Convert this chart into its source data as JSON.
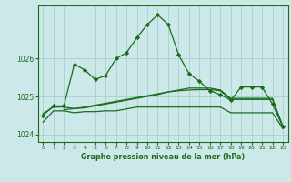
{
  "title": "Graphe pression niveau de la mer (hPa)",
  "background_color": "#cce8e8",
  "grid_color": "#aad4d4",
  "line_color": "#1a6b1a",
  "xlim": [
    -0.5,
    23.5
  ],
  "ylim": [
    1023.8,
    1027.4
  ],
  "yticks": [
    1024,
    1025,
    1026
  ],
  "xticks": [
    0,
    1,
    2,
    3,
    4,
    5,
    6,
    7,
    8,
    9,
    10,
    11,
    12,
    13,
    14,
    15,
    16,
    17,
    18,
    19,
    20,
    21,
    22,
    23
  ],
  "series1": {
    "x": [
      0,
      1,
      2,
      3,
      4,
      5,
      6,
      7,
      8,
      9,
      10,
      11,
      12,
      13,
      14,
      15,
      16,
      17,
      18,
      19,
      20,
      21,
      22,
      23
    ],
    "y": [
      1024.5,
      1024.75,
      1024.75,
      1025.85,
      1025.7,
      1025.45,
      1025.55,
      1026.0,
      1026.15,
      1026.55,
      1026.9,
      1027.15,
      1026.9,
      1026.1,
      1025.6,
      1025.4,
      1025.15,
      1025.05,
      1024.9,
      1025.25,
      1025.25,
      1025.25,
      1024.8,
      1024.2
    ]
  },
  "series2": {
    "x": [
      0,
      1,
      2,
      3,
      4,
      5,
      6,
      7,
      8,
      9,
      10,
      11,
      12,
      13,
      14,
      15,
      16,
      17,
      18,
      19,
      20,
      21,
      22,
      23
    ],
    "y": [
      1024.55,
      1024.72,
      1024.72,
      1024.68,
      1024.72,
      1024.77,
      1024.82,
      1024.87,
      1024.92,
      1024.97,
      1025.02,
      1025.07,
      1025.12,
      1025.15,
      1025.17,
      1025.18,
      1025.18,
      1025.15,
      1024.92,
      1024.92,
      1024.92,
      1024.92,
      1024.92,
      1024.2
    ]
  },
  "series3": {
    "x": [
      0,
      1,
      2,
      3,
      4,
      5,
      6,
      7,
      8,
      9,
      10,
      11,
      12,
      13,
      14,
      15,
      16,
      17,
      18,
      19,
      20,
      21,
      22,
      23
    ],
    "y": [
      1024.32,
      1024.62,
      1024.62,
      1024.57,
      1024.6,
      1024.6,
      1024.62,
      1024.62,
      1024.67,
      1024.72,
      1024.72,
      1024.72,
      1024.72,
      1024.72,
      1024.72,
      1024.72,
      1024.72,
      1024.72,
      1024.57,
      1024.57,
      1024.57,
      1024.57,
      1024.57,
      1024.15
    ]
  },
  "series4": {
    "x": [
      2,
      3,
      4,
      5,
      6,
      7,
      8,
      9,
      10,
      11,
      12,
      13,
      14,
      15,
      16,
      17,
      18,
      19,
      20,
      21,
      22,
      23
    ],
    "y": [
      1024.65,
      1024.68,
      1024.7,
      1024.75,
      1024.8,
      1024.85,
      1024.9,
      1024.95,
      1025.0,
      1025.05,
      1025.12,
      1025.17,
      1025.22,
      1025.22,
      1025.22,
      1025.17,
      1024.95,
      1024.95,
      1024.95,
      1024.95,
      1024.95,
      1024.2
    ]
  }
}
